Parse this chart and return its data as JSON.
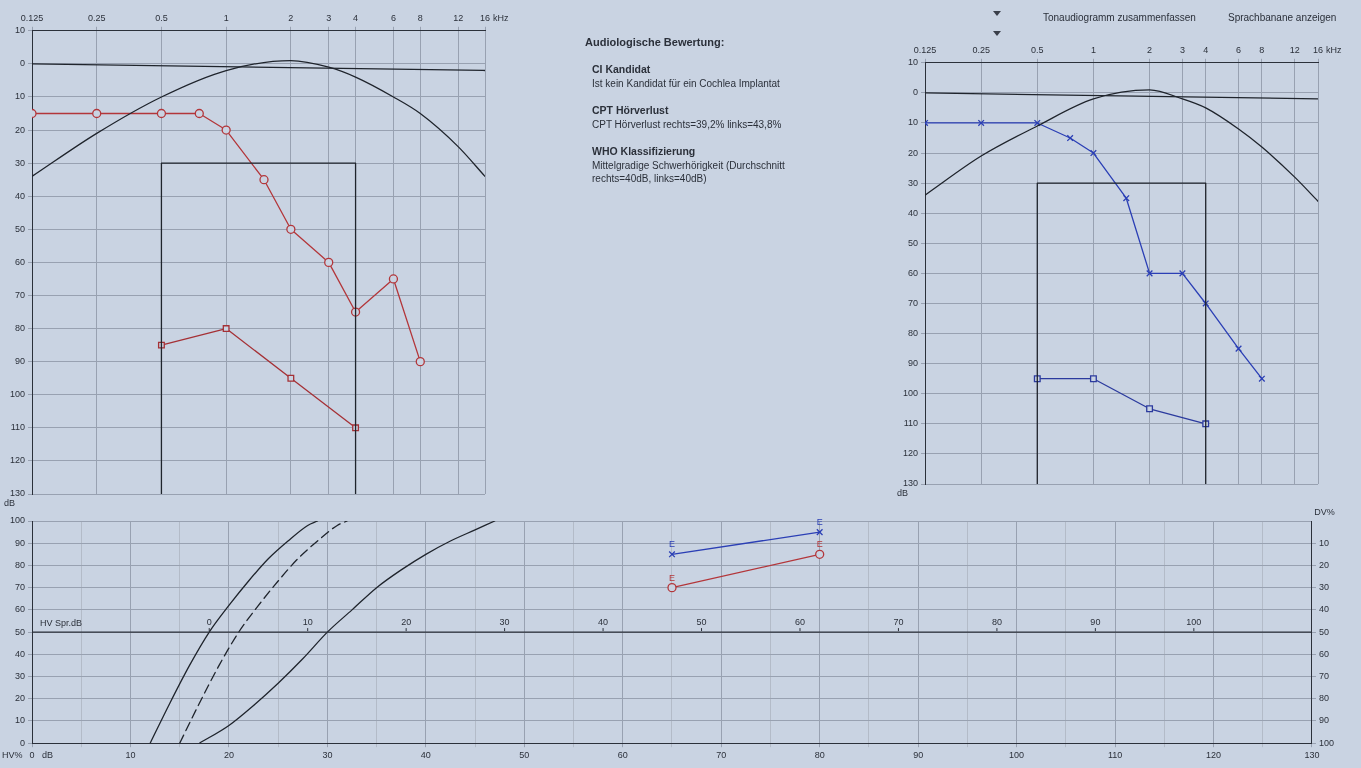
{
  "chart_data": [
    {
      "type": "line",
      "xlabel": "kHz",
      "ylabel": "dB",
      "log": "x",
      "xlim": [
        0.125,
        16
      ],
      "xticks": [
        0.125,
        0.25,
        0.5,
        1,
        2,
        3,
        4,
        6,
        8,
        12,
        16
      ],
      "ylim": [
        130,
        -10
      ],
      "yticks": [
        {
          "value": -10,
          "label": "10"
        },
        0,
        10,
        20,
        30,
        40,
        50,
        60,
        70,
        80,
        90,
        100,
        110,
        120,
        130
      ],
      "grid": true,
      "series": [
        {
          "color": "#1f242c",
          "x": [
            0.125,
            16
          ],
          "values": [
            0,
            2
          ]
        },
        {
          "color": "#1f242c",
          "x": [
            0.125,
            0.25,
            0.5,
            1,
            2,
            3,
            4,
            6,
            8,
            12,
            16
          ],
          "values": [
            34,
            21,
            10,
            2,
            -1,
            1,
            4,
            10,
            15,
            25,
            34
          ]
        },
        {
          "color": "#1f242c",
          "x": [
            0.5,
            0.5,
            4,
            4
          ],
          "values": [
            130,
            30,
            30,
            130
          ]
        },
        {
          "color": "#b3363a",
          "marker": "circle",
          "x": [
            0.125,
            0.25,
            0.5,
            0.75,
            1,
            1.5,
            2,
            3,
            4,
            6,
            8
          ],
          "values": [
            15,
            15,
            15,
            15,
            20,
            35,
            50,
            60,
            75,
            65,
            90
          ]
        },
        {
          "color": "#a53035",
          "marker": "square",
          "x": [
            0.5,
            1,
            2,
            4
          ],
          "values": [
            85,
            80,
            95,
            110
          ]
        }
      ]
    },
    {
      "type": "other",
      "title": "Audiologische Bewertung:",
      "annotations": [
        "CI Kandidat",
        "Ist kein Kandidat für ein Cochlea Implantat",
        "CPT Hörverlust",
        "CPT Hörverlust rechts=39,2% links=43,8%",
        "WHO Klassifizierung",
        "Mittelgradige Schwerhörigkeit (Durchschnitt rechts=40dB, links=40dB)"
      ]
    },
    {
      "type": "line",
      "xlabel": "kHz",
      "ylabel": "dB",
      "log": "x",
      "xlim": [
        0.125,
        16
      ],
      "xticks": [
        0.125,
        0.25,
        0.5,
        1,
        2,
        3,
        4,
        6,
        8,
        12,
        16
      ],
      "ylim": [
        130,
        -10
      ],
      "yticks": [
        {
          "value": -10,
          "label": "10"
        },
        0,
        10,
        20,
        30,
        40,
        50,
        60,
        70,
        80,
        90,
        100,
        110,
        120,
        130
      ],
      "grid": true,
      "annotations": [
        "Tonaudiogramm zusammenfassen",
        "Sprachbanane anzeigen"
      ],
      "series": [
        {
          "color": "#1f242c",
          "x": [
            0.125,
            16
          ],
          "values": [
            0,
            2
          ]
        },
        {
          "color": "#1f242c",
          "x": [
            0.125,
            0.25,
            0.5,
            1,
            2,
            3,
            4,
            6,
            8,
            12,
            16
          ],
          "values": [
            34,
            21,
            11,
            2,
            -1,
            2,
            5,
            12,
            18,
            28,
            36
          ]
        },
        {
          "color": "#1f242c",
          "x": [
            0.5,
            0.5,
            4,
            4
          ],
          "values": [
            130,
            30,
            30,
            130
          ]
        },
        {
          "color": "#2b3fb5",
          "marker": "cross",
          "x": [
            0.125,
            0.25,
            0.5,
            0.75,
            1,
            1.5,
            2,
            3,
            4,
            6,
            8
          ],
          "values": [
            10,
            10,
            10,
            15,
            20,
            35,
            60,
            60,
            70,
            85,
            95
          ]
        },
        {
          "color": "#2b3a9e",
          "marker": "square",
          "x": [
            0.5,
            1,
            2,
            4
          ],
          "values": [
            95,
            95,
            105,
            110
          ]
        }
      ]
    },
    {
      "type": "line",
      "xlabel": "dB",
      "ylabel": "HV%",
      "y2label": "DV%",
      "x2label": "HV Spr.dB",
      "xlim": [
        0,
        130
      ],
      "xticks": [
        0,
        {
          "value": 5,
          "label": null
        },
        10,
        {
          "value": 15,
          "label": null
        },
        20,
        {
          "value": 25,
          "label": null
        },
        30,
        {
          "value": 35,
          "label": null
        },
        40,
        {
          "value": 45,
          "label": null
        },
        50,
        {
          "value": 55,
          "label": null
        },
        60,
        {
          "value": 65,
          "label": null
        },
        70,
        {
          "value": 75,
          "label": null
        },
        80,
        {
          "value": 85,
          "label": null
        },
        90,
        {
          "value": 95,
          "label": null
        },
        100,
        {
          "value": 105,
          "label": null
        },
        110,
        {
          "value": 115,
          "label": null
        },
        120,
        {
          "value": 125,
          "label": null
        },
        130
      ],
      "ylim": [
        0,
        100
      ],
      "yticks": [
        0,
        10,
        20,
        30,
        40,
        50,
        60,
        70,
        80,
        90,
        100
      ],
      "y2lim": [
        100,
        0
      ],
      "y2ticks": [
        10,
        20,
        30,
        40,
        50,
        60,
        70,
        80,
        90,
        100
      ],
      "x2lim": [
        -18,
        112
      ],
      "x2ticks": [
        0,
        10,
        20,
        30,
        40,
        50,
        60,
        70,
        80,
        90,
        100
      ],
      "grid": true,
      "series": [
        {
          "color": "#1f242c",
          "x": [
            12,
            14,
            16,
            18,
            20,
            22,
            24,
            26,
            28,
            29
          ],
          "values": [
            0,
            18,
            35,
            50,
            62,
            73,
            83,
            91,
            98,
            100
          ]
        },
        {
          "color": "#1f242c",
          "line_style": "dashed",
          "x": [
            15,
            17,
            19,
            21,
            23,
            25,
            27,
            29,
            31,
            32
          ],
          "values": [
            0,
            18,
            35,
            50,
            62,
            73,
            83,
            91,
            98,
            100
          ]
        },
        {
          "color": "#1f242c",
          "x": [
            17,
            20,
            22.5,
            25,
            27.5,
            30,
            32.5,
            35,
            37.5,
            40,
            42.5,
            45,
            47
          ],
          "values": [
            0,
            8,
            17,
            27,
            38,
            50,
            60,
            70,
            78,
            85,
            91,
            96,
            100
          ]
        },
        {
          "color": "#2b3fb5",
          "marker": "cross",
          "x": [
            65,
            80
          ],
          "values": [
            85,
            95
          ],
          "value_labels": [
            "E",
            "E"
          ]
        },
        {
          "color": "#b3363a",
          "marker": "circle",
          "x": [
            65,
            80
          ],
          "values": [
            70,
            85
          ],
          "value_labels": [
            "E",
            "E"
          ]
        }
      ]
    }
  ]
}
